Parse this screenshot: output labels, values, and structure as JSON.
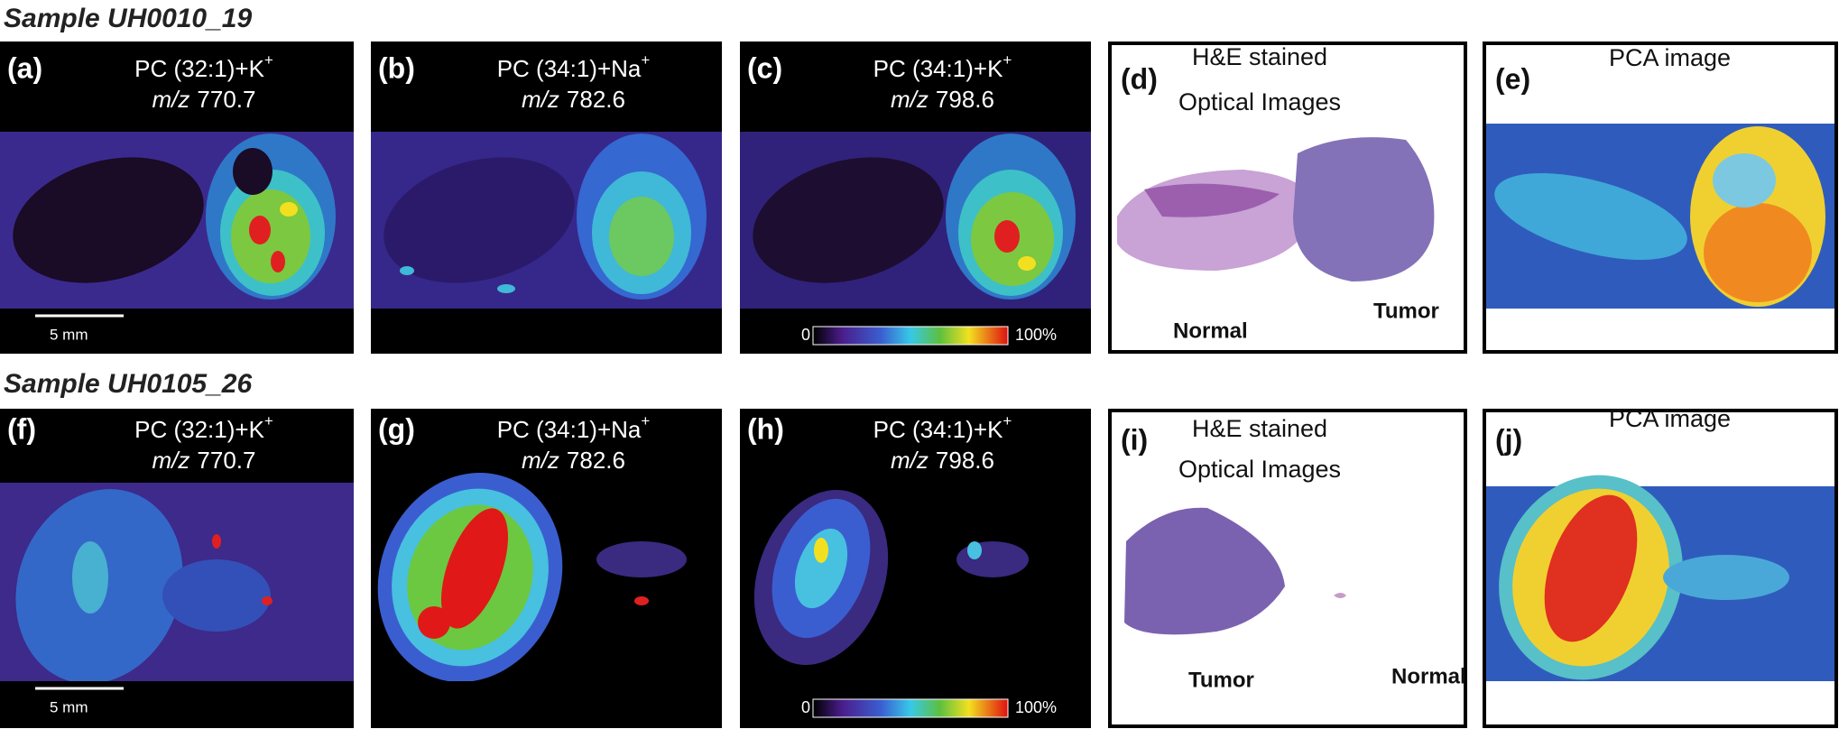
{
  "rows": [
    {
      "title": "Sample UH0010_19",
      "msi": [
        {
          "label": "(a)",
          "ion": "PC (32:1)+K",
          "charge": "+",
          "mz_label": "m/z",
          "mz": "770.7",
          "scale_bar": "5 mm"
        },
        {
          "label": "(b)",
          "ion": "PC (34:1)+Na",
          "charge": "+",
          "mz_label": "m/z",
          "mz": "782.6"
        },
        {
          "label": "(c)",
          "ion": "PC (34:1)+K",
          "charge": "+",
          "mz_label": "m/z",
          "mz": "798.6",
          "colorbar": {
            "min": "0",
            "max": "100%"
          }
        }
      ],
      "optical": {
        "label": "(d)",
        "lines": [
          "H&E stained",
          "Optical Images"
        ],
        "tissues": [
          "Normal",
          "Tumor"
        ]
      },
      "pca": {
        "label": "(e)",
        "title": "PCA image"
      }
    },
    {
      "title": "Sample UH0105_26",
      "msi": [
        {
          "label": "(f)",
          "ion": "PC (32:1)+K",
          "charge": "+",
          "mz_label": "m/z",
          "mz": "770.7",
          "scale_bar": "5 mm"
        },
        {
          "label": "(g)",
          "ion": "PC (34:1)+Na",
          "charge": "+",
          "mz_label": "m/z",
          "mz": "782.6"
        },
        {
          "label": "(h)",
          "ion": "PC (34:1)+K",
          "charge": "+",
          "mz_label": "m/z",
          "mz": "798.6",
          "colorbar": {
            "min": "0",
            "max": "100%"
          }
        }
      ],
      "optical": {
        "label": "(i)",
        "lines": [
          "H&E stained",
          "Optical Images"
        ],
        "tissues": [
          "Tumor",
          "Normal"
        ]
      },
      "pca": {
        "label": "(j)",
        "title": "PCA image"
      }
    }
  ]
}
